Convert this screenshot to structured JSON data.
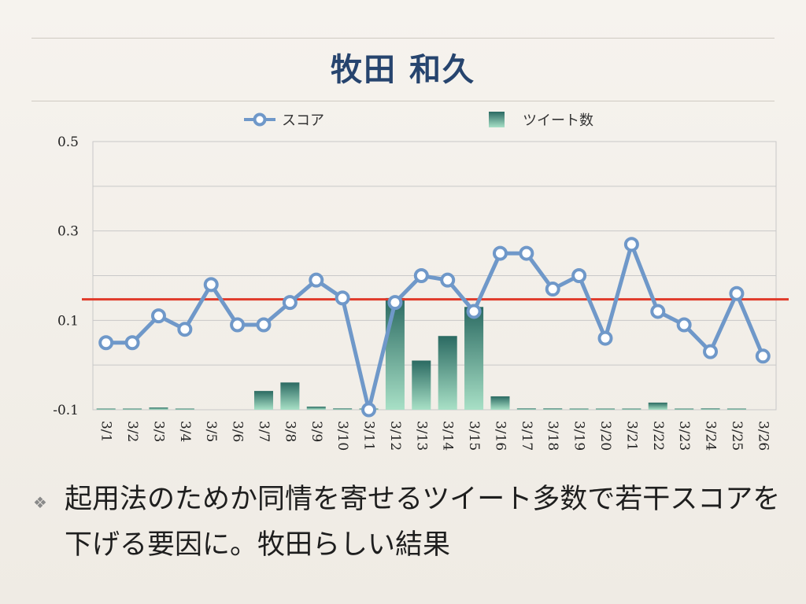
{
  "slide": {
    "title": "牧田 和久",
    "bullet_icon": "diamond-bullet-icon",
    "bullet_text": "起用法のためか同情を寄せるツイート多数で若干スコアを下げる要因に。牧田らしい結果"
  },
  "colors": {
    "title": "#26446e",
    "score_line": "#6f98c9",
    "tweet_bar_top": "#2b6a62",
    "tweet_bar_bottom": "#a8e0c6",
    "reference_line": "#e03a2a",
    "grid": "#c8c8c8"
  },
  "chart_data": {
    "type": "bar+line",
    "categories": [
      "3/1",
      "3/2",
      "3/3",
      "3/4",
      "3/5",
      "3/6",
      "3/7",
      "3/8",
      "3/9",
      "3/10",
      "3/11",
      "3/12",
      "3/13",
      "3/14",
      "3/15",
      "3/16",
      "3/17",
      "3/18",
      "3/19",
      "3/20",
      "3/21",
      "3/22",
      "3/23",
      "3/24",
      "3/25",
      "3/26"
    ],
    "series": [
      {
        "name": "スコア",
        "kind": "line",
        "values": [
          0.05,
          0.05,
          0.11,
          0.08,
          0.18,
          0.09,
          0.09,
          0.14,
          0.19,
          0.15,
          -0.1,
          0.14,
          0.2,
          0.19,
          0.12,
          0.25,
          0.25,
          0.17,
          0.2,
          0.06,
          0.27,
          0.12,
          0.09,
          0.03,
          0.16,
          0.02
        ]
      },
      {
        "name": "ツイート数",
        "kind": "bar",
        "values": [
          0.001,
          0.001,
          0.005,
          0.001,
          0,
          0,
          0.042,
          0.061,
          0.007,
          0.003,
          0.001,
          0.25,
          0.11,
          0.165,
          0.23,
          0.03,
          0.003,
          0.003,
          0.001,
          0.001,
          0.001,
          0.016,
          0.001,
          0.003,
          0.001,
          0
        ]
      }
    ],
    "reference_line": 0.147,
    "yaxis_ticks": [
      "0.5",
      "0.3",
      "0.1",
      "-0.1"
    ],
    "ylim": [
      -0.1,
      0.5
    ],
    "grid": true,
    "legend_position": "top"
  }
}
